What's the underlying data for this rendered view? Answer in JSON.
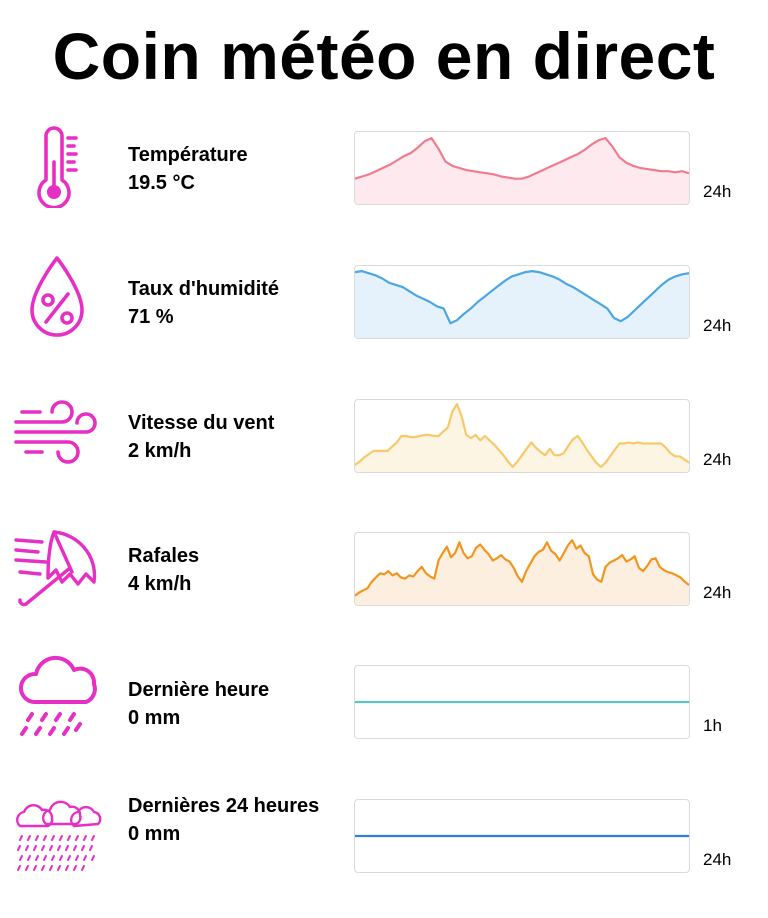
{
  "title": "Coin météo en direct",
  "rows": [
    {
      "id": "temperature",
      "label": "Température",
      "value": "19.5 °C",
      "period": "24h",
      "line_color": "#f07b8f",
      "fill_color": "#fde9ee",
      "series": [
        20,
        22,
        24,
        27,
        30,
        33,
        37,
        41,
        44,
        49,
        55,
        58,
        48,
        36,
        32,
        30,
        28,
        27,
        26,
        25,
        24,
        22,
        21,
        20,
        20,
        22,
        25,
        28,
        31,
        34,
        37,
        40,
        43,
        47,
        52,
        56,
        58,
        50,
        40,
        35,
        32,
        30,
        29,
        28,
        27,
        27,
        26,
        27,
        25
      ]
    },
    {
      "id": "humidity",
      "label": "Taux d'humidité",
      "value": "71 %",
      "period": "24h",
      "line_color": "#4ba6e2",
      "fill_color": "#e6f2fb",
      "series": [
        58,
        59,
        57,
        55,
        52,
        48,
        46,
        44,
        40,
        36,
        33,
        30,
        26,
        24,
        10,
        13,
        19,
        24,
        30,
        35,
        40,
        45,
        50,
        54,
        56,
        58,
        59,
        58,
        56,
        54,
        51,
        47,
        44,
        40,
        36,
        32,
        28,
        24,
        15,
        12,
        16,
        22,
        28,
        34,
        40,
        46,
        51,
        54,
        56,
        57
      ]
    },
    {
      "id": "wind",
      "label": "Vitesse du vent",
      "value": "2 km/h",
      "period": "24h",
      "line_color": "#f7c96a",
      "fill_color": "#fdf5e4",
      "series": [
        3,
        6,
        10,
        13,
        16,
        16,
        16,
        16,
        20,
        24,
        30,
        30,
        29,
        29,
        30,
        31,
        31,
        30,
        30,
        34,
        38,
        53,
        60,
        48,
        31,
        28,
        31,
        26,
        30,
        26,
        22,
        17,
        12,
        6,
        1,
        6,
        12,
        18,
        24,
        19,
        15,
        12,
        18,
        12,
        12,
        14,
        21,
        27,
        30,
        24,
        17,
        11,
        5,
        1,
        5,
        11,
        17,
        23,
        23,
        24,
        23,
        24,
        23,
        23,
        23,
        23,
        23,
        19,
        14,
        11,
        11,
        8,
        5
      ]
    },
    {
      "id": "gusts",
      "label": "Rafales",
      "value": "4 km/h",
      "period": "24h",
      "line_color": "#f2951e",
      "fill_color": "#fdefe0",
      "series": [
        5,
        8,
        10,
        12,
        18,
        22,
        26,
        25,
        28,
        24,
        26,
        22,
        21,
        24,
        23,
        28,
        32,
        26,
        23,
        21,
        38,
        45,
        51,
        41,
        45,
        55,
        45,
        40,
        42,
        50,
        53,
        48,
        44,
        38,
        40,
        43,
        39,
        37,
        31,
        23,
        18,
        28,
        35,
        42,
        46,
        48,
        55,
        47,
        44,
        38,
        45,
        52,
        57,
        49,
        52,
        45,
        42,
        25,
        20,
        18,
        32,
        36,
        38,
        40,
        43,
        37,
        39,
        42,
        31,
        28,
        33,
        39,
        40,
        32,
        29,
        27,
        26,
        24,
        22,
        18,
        15
      ]
    },
    {
      "id": "rain_1h",
      "label": "Dernière heure",
      "value": "0 mm",
      "period": "1h",
      "line_color": "#5ec3c3",
      "fill_color": "#eef8f8",
      "series": [
        0,
        0,
        0,
        0,
        0,
        0,
        0,
        0,
        0,
        0,
        0,
        0
      ]
    },
    {
      "id": "rain_24h",
      "label": "Dernières 24 heures",
      "value": "0 mm",
      "period": "24h",
      "line_color": "#2f7fe0",
      "fill_color": "#e9f2fc",
      "series": [
        0,
        0,
        0,
        0,
        0,
        0,
        0,
        0,
        0,
        0,
        0,
        0,
        0,
        0,
        0,
        0,
        0,
        0,
        0,
        0,
        0,
        0,
        0,
        0
      ]
    }
  ],
  "icons": {
    "temperature": "thermometer-icon",
    "humidity": "humidity-drop-percent-icon",
    "wind": "wind-icon",
    "gusts": "umbrella-gust-icon",
    "rain_1h": "rain-cloud-icon",
    "rain_24h": "rain-clouds-icon"
  },
  "colors": {
    "icon": "#e62fc4"
  }
}
